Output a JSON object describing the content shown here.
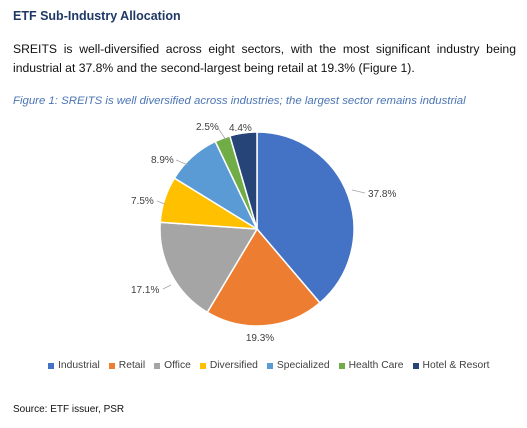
{
  "section_title": "ETF Sub-Industry Allocation",
  "paragraph": "SREITS is well-diversified across eight sectors, with the most significant industry being industrial at 37.8% and the second-largest being retail at 19.3% (Figure 1).",
  "figure_caption": "Figure 1: SREITS is well diversified across industries; the largest sector remains industrial",
  "source": "Source: ETF issuer, PSR",
  "chart_data": {
    "type": "pie",
    "start_angle_deg": 0,
    "direction": "clockwise",
    "legend_position": "bottom",
    "slices": [
      {
        "name": "Industrial",
        "value": 37.8,
        "label": "37.8%",
        "color": "#4472c4"
      },
      {
        "name": "Retail",
        "value": 19.3,
        "label": "19.3%",
        "color": "#ed7d31"
      },
      {
        "name": "Office",
        "value": 17.1,
        "label": "17.1%",
        "color": "#a5a5a5"
      },
      {
        "name": "Diversified",
        "value": 7.5,
        "label": "7.5%",
        "color": "#ffc000"
      },
      {
        "name": "Specialized",
        "value": 8.9,
        "label": "8.9%",
        "color": "#5b9bd5"
      },
      {
        "name": "Health Care",
        "value": 2.5,
        "label": "2.5%",
        "color": "#70ad47"
      },
      {
        "name": "Hotel & Resort",
        "value": 4.4,
        "label": "4.4%",
        "color": "#264478"
      }
    ]
  }
}
